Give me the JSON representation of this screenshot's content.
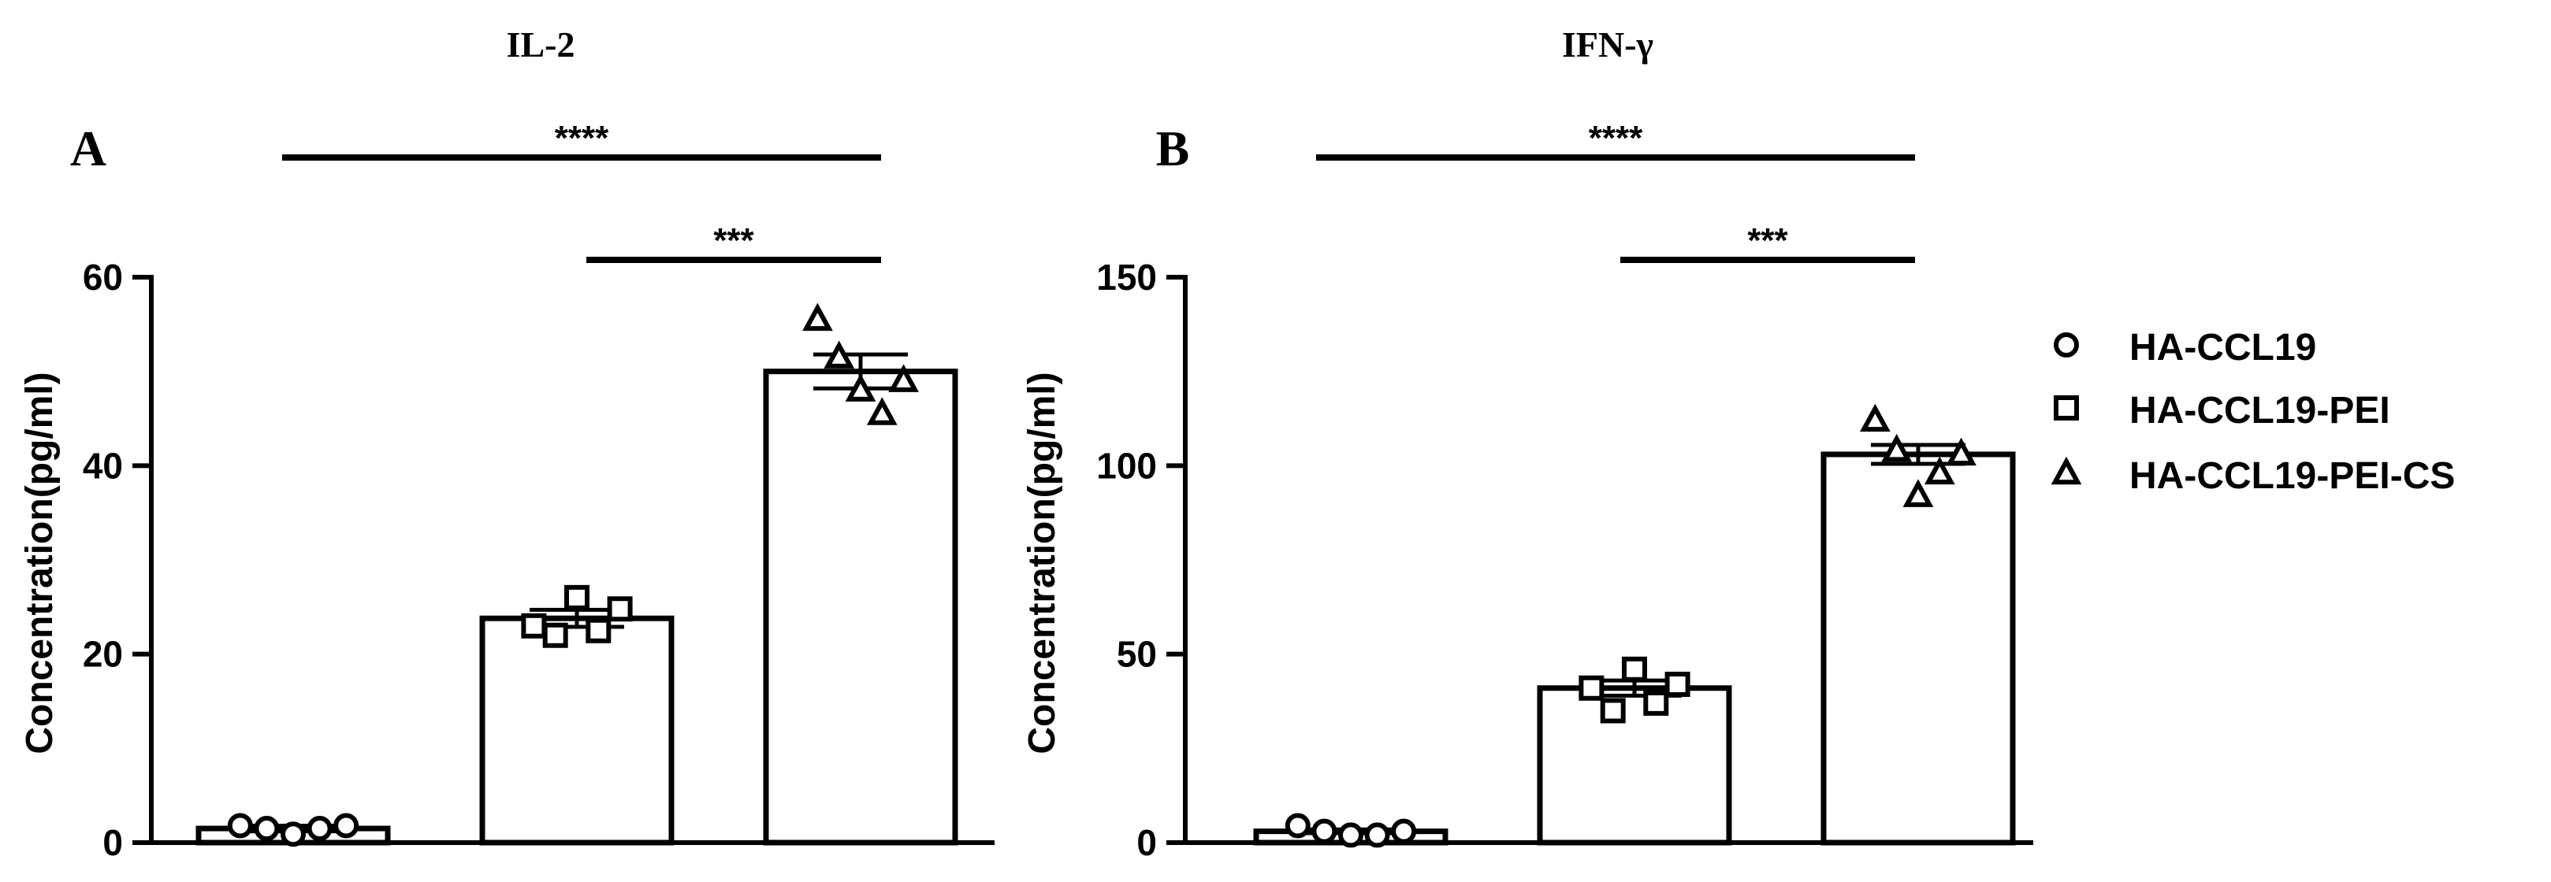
{
  "chart_data": [
    {
      "type": "bar",
      "panel": "A",
      "title": "IL-2",
      "ylabel": "Concentration(pg/ml)",
      "xlabel": "",
      "ylim": [
        0,
        60
      ],
      "yticks": [
        0,
        20,
        40,
        60
      ],
      "categories": [
        "HA-CCL19",
        "HA-CCL19-PEI",
        "HA-CCL19-PEI-CS"
      ],
      "values": [
        1.5,
        23.8,
        50.0
      ],
      "sem": [
        0.3,
        0.9,
        1.8
      ],
      "points": [
        [
          1.8,
          1.5,
          0.9,
          1.5,
          1.8
        ],
        [
          23.0,
          22.0,
          26.0,
          22.5,
          24.8
        ],
        [
          55.5,
          51.5,
          48.0,
          45.5,
          49.0
        ]
      ],
      "significance": [
        {
          "from": 0,
          "to": 2,
          "label": "****"
        },
        {
          "from": 1,
          "to": 2,
          "label": "***"
        }
      ]
    },
    {
      "type": "bar",
      "panel": "B",
      "title": "IFN-γ",
      "ylabel": "Concentration(pg/ml)",
      "xlabel": "",
      "ylim": [
        0,
        150
      ],
      "yticks": [
        0,
        50,
        100,
        150
      ],
      "categories": [
        "HA-CCL19",
        "HA-CCL19-PEI",
        "HA-CCL19-PEI-CS"
      ],
      "values": [
        3.0,
        41.0,
        103.0
      ],
      "sem": [
        0.5,
        2.0,
        2.5
      ],
      "points": [
        [
          4.5,
          3.0,
          2.0,
          2.0,
          3.0
        ],
        [
          41.0,
          35.0,
          46.0,
          37.0,
          42.0
        ],
        [
          112.0,
          104.0,
          92.0,
          98.0,
          103.0
        ]
      ],
      "significance": [
        {
          "from": 0,
          "to": 2,
          "label": "****"
        },
        {
          "from": 1,
          "to": 2,
          "label": "***"
        }
      ]
    }
  ],
  "legend": {
    "items": [
      {
        "label": "HA-CCL19",
        "marker": "circle"
      },
      {
        "label": "HA-CCL19-PEI",
        "marker": "square"
      },
      {
        "label": "HA-CCL19-PEI-CS",
        "marker": "triangle"
      }
    ]
  },
  "colors": {
    "ink": "#000000",
    "fill": "#ffffff"
  }
}
